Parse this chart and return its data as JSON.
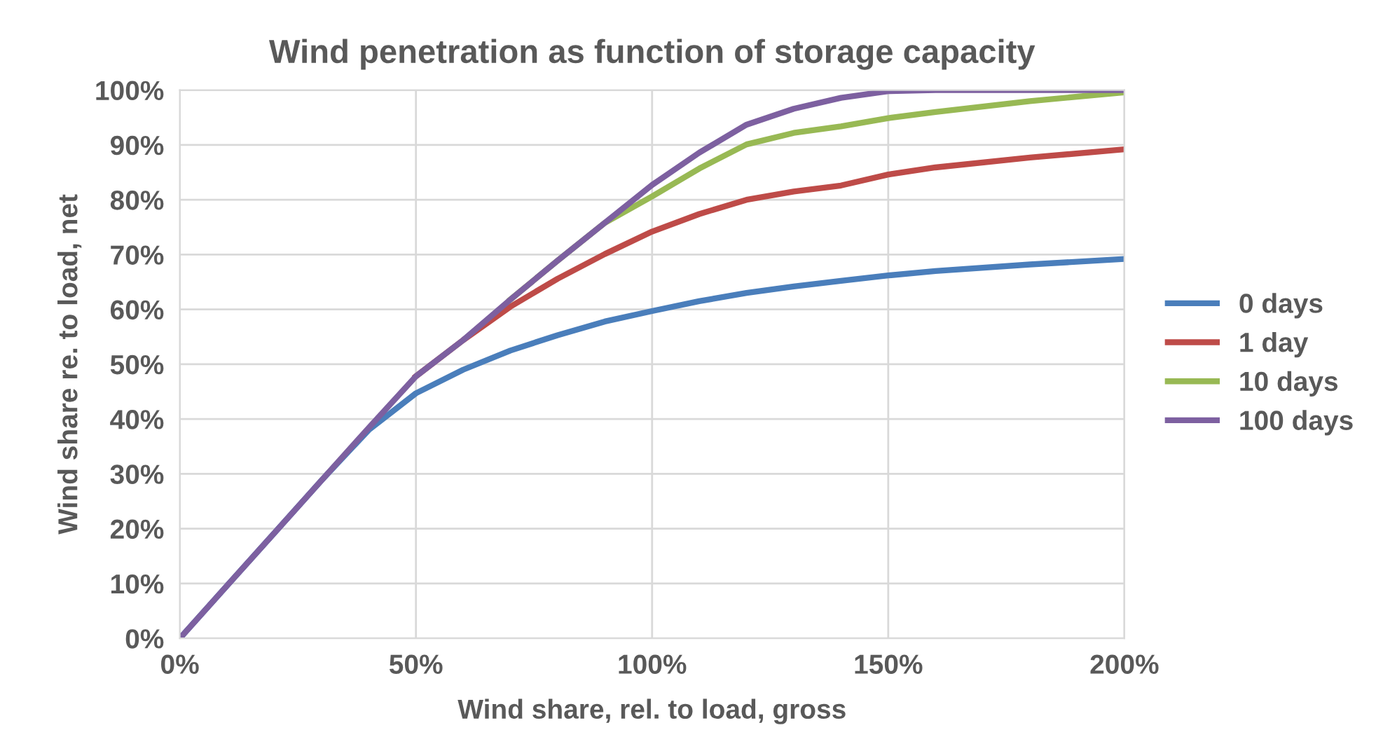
{
  "chart_data": {
    "type": "line",
    "title": "Wind penetration as function of storage capacity",
    "xlabel": "Wind share, rel. to load, gross",
    "ylabel": "Wind share re. to load, net",
    "x": [
      0,
      10,
      20,
      30,
      40,
      50,
      60,
      70,
      80,
      90,
      100,
      110,
      120,
      130,
      140,
      150,
      160,
      180,
      200
    ],
    "series": [
      {
        "name": "0 days",
        "color": "#4a7ebb",
        "values": [
          0,
          9.6,
          19.2,
          28.8,
          38,
          44.7,
          49,
          52.5,
          55.3,
          57.8,
          59.7,
          61.5,
          63,
          64.2,
          65.2,
          66.2,
          67,
          68.2,
          69.2
        ]
      },
      {
        "name": "1 day",
        "color": "#be4b48",
        "values": [
          null,
          null,
          null,
          null,
          null,
          47.8,
          54.4,
          60.5,
          65.6,
          70.1,
          74.2,
          77.4,
          80,
          81.5,
          82.6,
          84.6,
          85.9,
          87.7,
          89.2
        ]
      },
      {
        "name": "10 days",
        "color": "#98b954",
        "values": [
          null,
          null,
          null,
          null,
          null,
          null,
          null,
          61.8,
          68.9,
          75.8,
          80.6,
          85.7,
          90.1,
          92.2,
          93.4,
          94.9,
          96,
          98,
          99.6
        ]
      },
      {
        "name": "100 days",
        "color": "#7d60a0",
        "values": [
          0,
          9.6,
          19.2,
          28.8,
          38.4,
          47.8,
          54.4,
          61.8,
          68.9,
          75.8,
          82.7,
          88.6,
          93.7,
          96.6,
          98.6,
          99.8,
          100,
          100,
          100
        ]
      }
    ],
    "xlim": [
      0,
      200
    ],
    "ylim": [
      0,
      100
    ],
    "xticks": [
      {
        "value": 0,
        "label": "0%"
      },
      {
        "value": 50,
        "label": "50%"
      },
      {
        "value": 100,
        "label": "100%"
      },
      {
        "value": 150,
        "label": "150%"
      },
      {
        "value": 200,
        "label": "200%"
      }
    ],
    "yticks": [
      {
        "value": 0,
        "label": "0%"
      },
      {
        "value": 10,
        "label": "10%"
      },
      {
        "value": 20,
        "label": "20%"
      },
      {
        "value": 30,
        "label": "30%"
      },
      {
        "value": 40,
        "label": "40%"
      },
      {
        "value": 50,
        "label": "50%"
      },
      {
        "value": 60,
        "label": "60%"
      },
      {
        "value": 70,
        "label": "70%"
      },
      {
        "value": 80,
        "label": "80%"
      },
      {
        "value": 90,
        "label": "90%"
      },
      {
        "value": 100,
        "label": "100%"
      }
    ],
    "grid": true,
    "legend": "right",
    "marker": "none",
    "line_style": "solid"
  }
}
